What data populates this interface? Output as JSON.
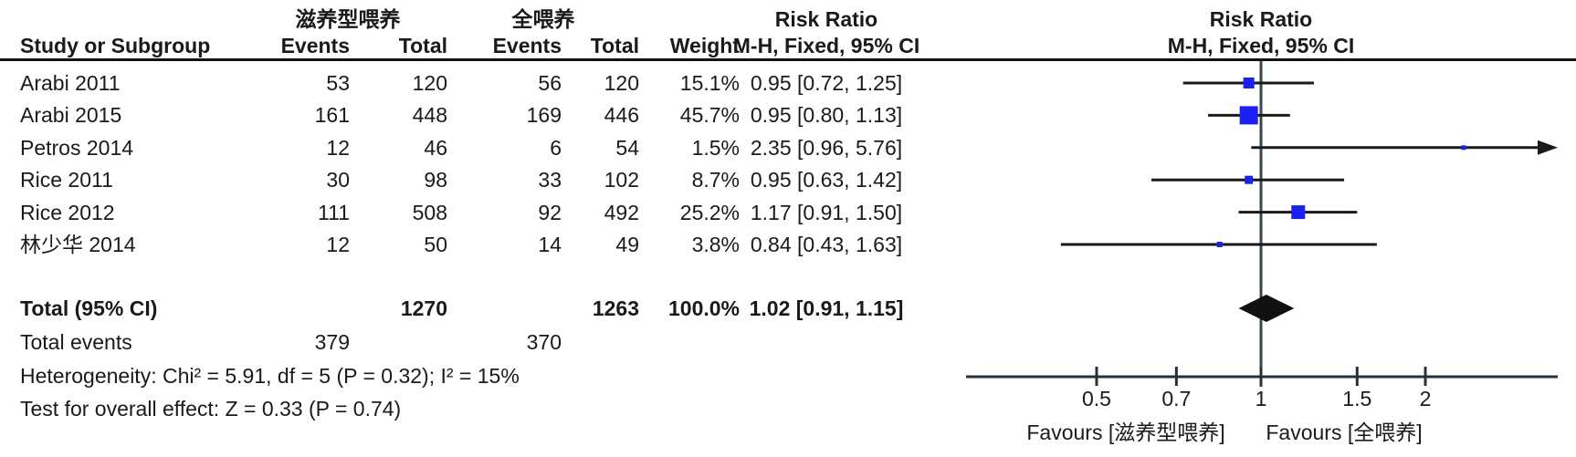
{
  "header": {
    "group1": "滋养型喂养",
    "group2": "全喂养",
    "risk_ratio": "Risk Ratio",
    "method": "M-H, Fixed, 95% CI",
    "study_col": "Study or Subgroup",
    "events_col": "Events",
    "total_col": "Total",
    "weight_col": "Weight"
  },
  "totals": {
    "label": "Total (95% CI)",
    "total1": "1270",
    "total2": "1263",
    "weight_label": "100.0%",
    "ci_label": "1.02 [0.91, 1.15]"
  },
  "total_events": {
    "label": "Total events",
    "events1": "379",
    "events2": "370"
  },
  "footer": {
    "heterogeneity": "Heterogeneity: Chi² = 5.91, df = 5 (P = 0.32); I² = 15%",
    "overall_effect": "Test for overall effect: Z = 0.33 (P = 0.74)"
  },
  "chart_data": {
    "type": "forest",
    "effect_measure": "Risk Ratio",
    "method": "M-H, Fixed, 95% CI",
    "x_scale": "log",
    "null_value": 1,
    "x_ticks": [
      0.5,
      0.7,
      1,
      1.5,
      2
    ],
    "x_drawn_range": [
      0.29,
      3.5
    ],
    "studies": [
      {
        "name": "Arabi 2011",
        "events1": 53,
        "total1": 120,
        "events2": 56,
        "total2": 120,
        "weight": 15.1,
        "weight_label": "15.1%",
        "rr": 0.95,
        "ci": [
          0.72,
          1.25
        ],
        "ci_label": "0.95 [0.72, 1.25]"
      },
      {
        "name": "Arabi 2015",
        "events1": 161,
        "total1": 448,
        "events2": 169,
        "total2": 446,
        "weight": 45.7,
        "weight_label": "45.7%",
        "rr": 0.95,
        "ci": [
          0.8,
          1.13
        ],
        "ci_label": "0.95 [0.80, 1.13]"
      },
      {
        "name": "Petros 2014",
        "events1": 12,
        "total1": 46,
        "events2": 6,
        "total2": 54,
        "weight": 1.5,
        "weight_label": "1.5%",
        "rr": 2.35,
        "ci": [
          0.96,
          5.76
        ],
        "ci_label": "2.35 [0.96, 5.76]",
        "clipped_right": true
      },
      {
        "name": "Rice 2011",
        "events1": 30,
        "total1": 98,
        "events2": 33,
        "total2": 102,
        "weight": 8.7,
        "weight_label": "8.7%",
        "rr": 0.95,
        "ci": [
          0.63,
          1.42
        ],
        "ci_label": "0.95 [0.63, 1.42]"
      },
      {
        "name": "Rice 2012",
        "events1": 111,
        "total1": 508,
        "events2": 92,
        "total2": 492,
        "weight": 25.2,
        "weight_label": "25.2%",
        "rr": 1.17,
        "ci": [
          0.91,
          1.5
        ],
        "ci_label": "1.17 [0.91, 1.50]"
      },
      {
        "name": "林少华 2014",
        "events1": 12,
        "total1": 50,
        "events2": 14,
        "total2": 49,
        "weight": 3.8,
        "weight_label": "3.8%",
        "rr": 0.84,
        "ci": [
          0.43,
          1.63
        ],
        "ci_label": "0.84 [0.43, 1.63]"
      }
    ],
    "total": {
      "rr": 1.02,
      "ci": [
        0.91,
        1.15
      ]
    },
    "favours_left": "Favours [滋养型喂养]",
    "favours_right": "Favours [全喂养]",
    "colors": {
      "square": "#1b22ef",
      "diamond": "#111111",
      "ci_line": "#1a1a1a",
      "null_line": "#37474f",
      "axis": "#263238",
      "text": "#1a1a1a"
    }
  }
}
